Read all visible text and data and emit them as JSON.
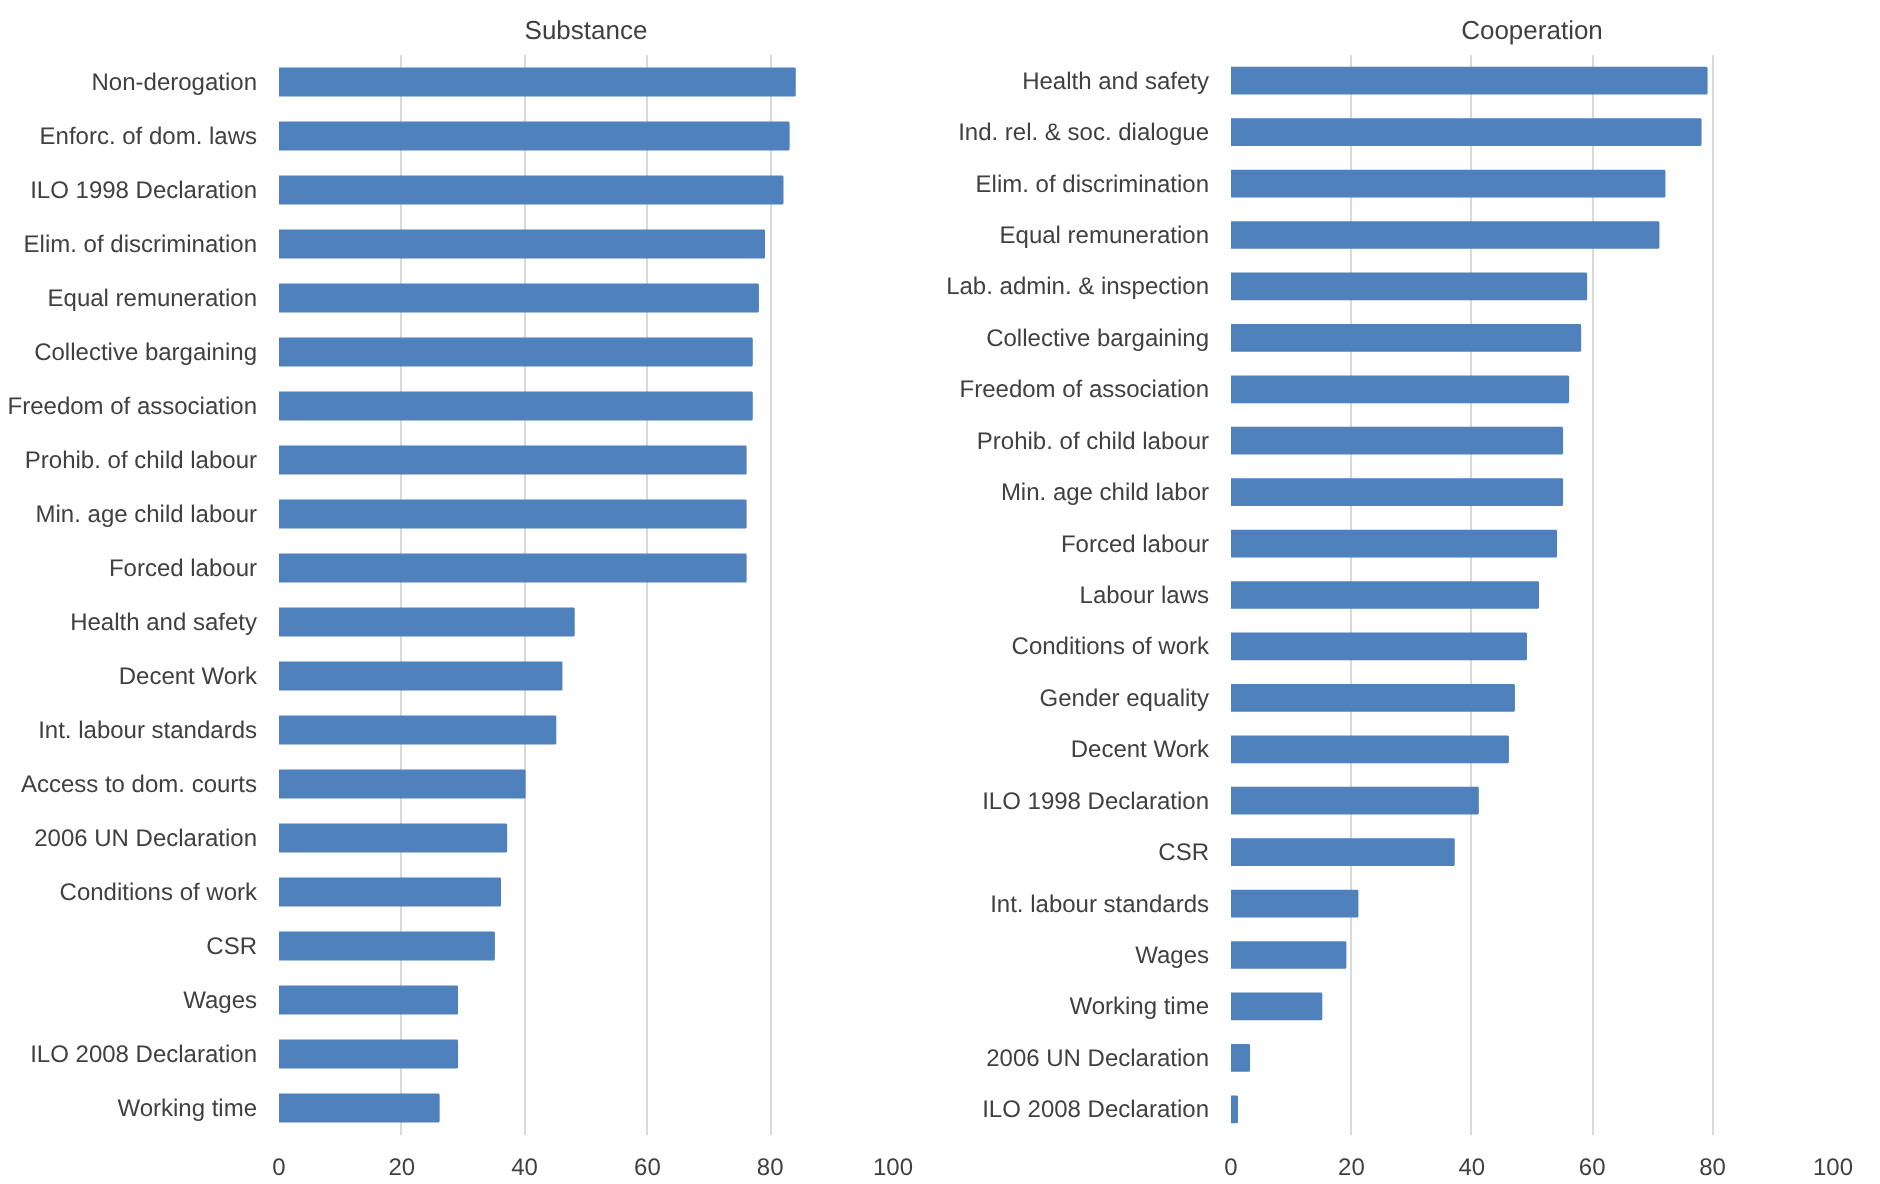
{
  "chart_data": [
    {
      "type": "bar",
      "orientation": "horizontal",
      "title": "Substance",
      "color": "#4f81bd",
      "grid": "x",
      "xlim": [
        0,
        100
      ],
      "xticks": [
        0,
        20,
        40,
        60,
        80,
        100
      ],
      "categories": [
        "Non-derogation",
        "Enforc. of dom. laws",
        "ILO 1998 Declaration",
        "Elim. of discrimination",
        "Equal remuneration",
        "Collective bargaining",
        "Freedom of association",
        "Prohib. of child labour",
        "Min. age child labour",
        "Forced labour",
        "Health and safety",
        "Decent Work",
        "Int. labour standards",
        "Access to dom. courts",
        "2006 UN Declaration",
        "Conditions of work",
        "CSR",
        "Wages",
        "ILO 2008 Declaration",
        "Working time"
      ],
      "values": [
        84,
        83,
        82,
        79,
        78,
        77,
        77,
        76,
        76,
        76,
        48,
        46,
        45,
        40,
        37,
        36,
        35,
        29,
        29,
        26
      ]
    },
    {
      "type": "bar",
      "orientation": "horizontal",
      "title": "Cooperation",
      "color": "#4f81bd",
      "grid": "x",
      "xlim": [
        0,
        100
      ],
      "xticks": [
        0,
        20,
        40,
        60,
        80,
        100
      ],
      "categories": [
        "Health and safety",
        "Ind. rel. & soc. dialogue",
        "Elim. of discrimination",
        "Equal remuneration",
        "Lab. admin. & inspection",
        "Collective bargaining",
        "Freedom of association",
        "Prohib. of child labour",
        "Min. age child labor",
        "Forced labour",
        "Labour laws",
        "Conditions of work",
        "Gender equality",
        "Decent Work",
        "ILO 1998 Declaration",
        "CSR",
        "Int. labour standards",
        "Wages",
        "Working time",
        "2006 UN Declaration",
        "ILO 2008 Declaration"
      ],
      "values": [
        79,
        78,
        72,
        71,
        59,
        58,
        56,
        55,
        55,
        54,
        51,
        49,
        47,
        46,
        41,
        37,
        21,
        19,
        15,
        3,
        1
      ]
    }
  ]
}
